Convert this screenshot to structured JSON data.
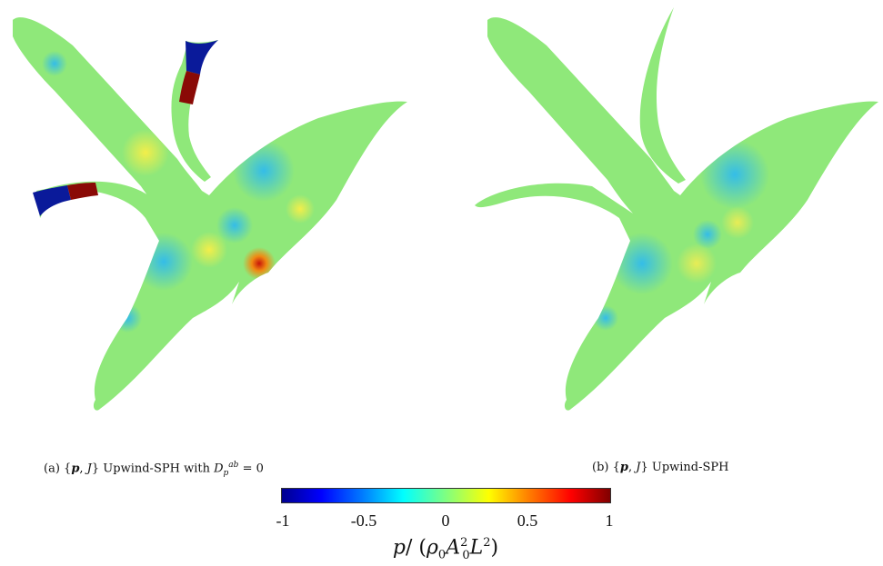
{
  "panels": [
    {
      "id": "a",
      "caption": {
        "prefix": "(a) {",
        "p": "p",
        "sep": ", ",
        "J": "J",
        "suffix": "} Upwind-SPH with ",
        "D": "D",
        "D_sub": "p",
        "D_sup": "ab",
        "eq": " = 0"
      }
    },
    {
      "id": "b",
      "caption": {
        "prefix": "(b) {",
        "p": "p",
        "sep": ", ",
        "J": "J",
        "suffix": "} Upwind-SPH"
      }
    }
  ],
  "colorbar": {
    "ticks": [
      "-1",
      "-0.5",
      "0",
      "0.5",
      "1"
    ],
    "min": -1,
    "max": 1,
    "colormap": "jet",
    "colors": [
      "#00008f",
      "#0000ff",
      "#00ffff",
      "#80ff80",
      "#ffff00",
      "#ff0000",
      "#800000"
    ],
    "label": {
      "p": "p",
      "slash": "/ (",
      "rho": "ρ",
      "rho_sub": "0",
      "A": "A",
      "A_sub": "0",
      "A_sup": "2",
      "L": "L",
      "L_sup": "2",
      "close": ")"
    }
  },
  "field_colors": {
    "background_field": "#8fe87a",
    "low": "#39d4f0",
    "high": "#f2e43a",
    "max": "#d41a0a",
    "min": "#0a1a9a"
  }
}
